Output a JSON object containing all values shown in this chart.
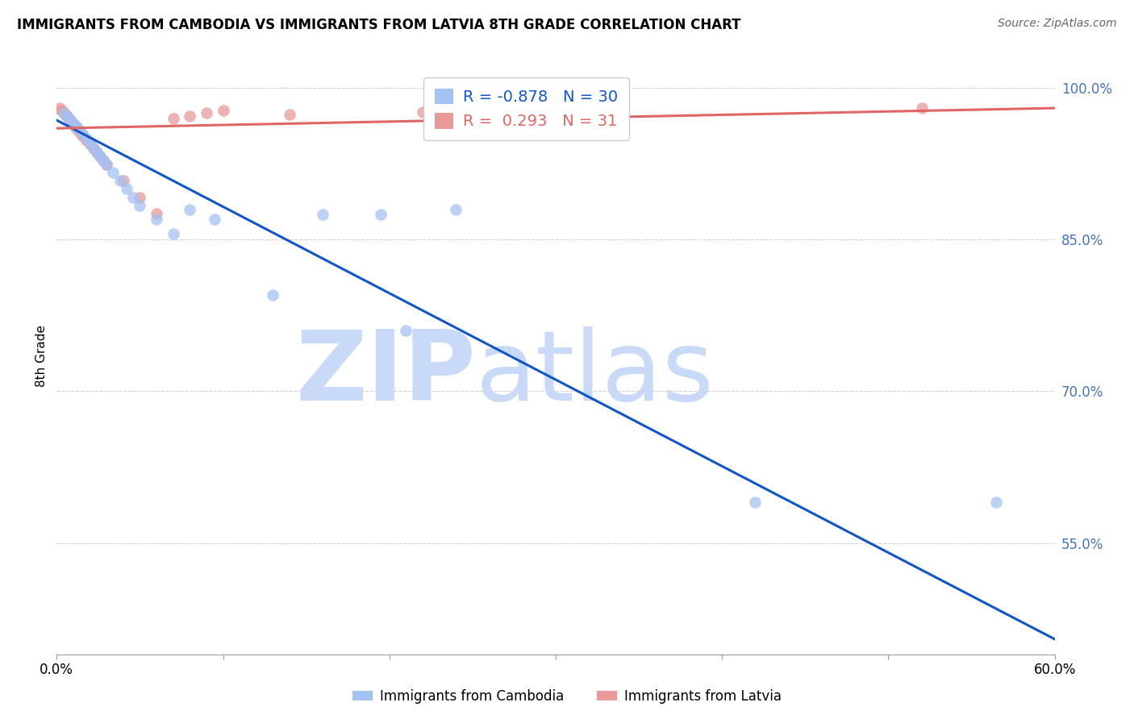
{
  "title": "IMMIGRANTS FROM CAMBODIA VS IMMIGRANTS FROM LATVIA 8TH GRADE CORRELATION CHART",
  "source": "Source: ZipAtlas.com",
  "ylabel": "8th Grade",
  "watermark_line1": "ZIP",
  "watermark_line2": "atlas",
  "xlim": [
    0.0,
    0.6
  ],
  "ylim": [
    0.44,
    1.03
  ],
  "xticks": [
    0.0,
    0.1,
    0.2,
    0.3,
    0.4,
    0.5,
    0.6
  ],
  "xtick_labels": [
    "0.0%",
    "",
    "",
    "",
    "",
    "",
    "60.0%"
  ],
  "yticks_right": [
    0.55,
    0.7,
    0.85,
    1.0
  ],
  "ytick_right_labels": [
    "55.0%",
    "70.0%",
    "85.0%",
    "100.0%"
  ],
  "blue_color": "#a4c2f4",
  "pink_color": "#ea9999",
  "blue_line_color": "#1155cc",
  "pink_line_color": "#e06666",
  "legend_blue_R": "-0.878",
  "legend_blue_N": "30",
  "legend_pink_R": "0.293",
  "legend_pink_N": "31",
  "legend_label_blue": "Immigrants from Cambodia",
  "legend_label_pink": "Immigrants from Latvia",
  "grid_color": "#b7b7b7",
  "watermark_color": "#c9daf8",
  "blue_scatter_x": [
    0.004,
    0.006,
    0.008,
    0.01,
    0.012,
    0.014,
    0.016,
    0.018,
    0.02,
    0.022,
    0.024,
    0.026,
    0.028,
    0.03,
    0.034,
    0.038,
    0.042,
    0.046,
    0.05,
    0.06,
    0.07,
    0.08,
    0.095,
    0.13,
    0.16,
    0.195,
    0.21,
    0.24,
    0.42,
    0.565
  ],
  "blue_scatter_y": [
    0.975,
    0.972,
    0.968,
    0.965,
    0.962,
    0.958,
    0.954,
    0.95,
    0.945,
    0.94,
    0.936,
    0.932,
    0.928,
    0.924,
    0.916,
    0.908,
    0.9,
    0.892,
    0.884,
    0.87,
    0.856,
    0.88,
    0.87,
    0.795,
    0.875,
    0.875,
    0.76,
    0.88,
    0.59,
    0.59
  ],
  "pink_scatter_x": [
    0.002,
    0.003,
    0.004,
    0.005,
    0.006,
    0.007,
    0.008,
    0.009,
    0.01,
    0.011,
    0.012,
    0.013,
    0.015,
    0.016,
    0.018,
    0.02,
    0.022,
    0.024,
    0.026,
    0.028,
    0.03,
    0.04,
    0.05,
    0.06,
    0.07,
    0.08,
    0.09,
    0.1,
    0.14,
    0.22,
    0.52
  ],
  "pink_scatter_y": [
    0.98,
    0.978,
    0.976,
    0.974,
    0.972,
    0.97,
    0.968,
    0.966,
    0.964,
    0.962,
    0.96,
    0.958,
    0.954,
    0.952,
    0.948,
    0.944,
    0.94,
    0.936,
    0.932,
    0.928,
    0.924,
    0.908,
    0.892,
    0.876,
    0.97,
    0.972,
    0.975,
    0.978,
    0.974,
    0.976,
    0.98
  ],
  "blue_line_x0": 0.0,
  "blue_line_x1": 0.6,
  "blue_line_y0": 0.968,
  "blue_line_y1": 0.455,
  "pink_line_x0": 0.0,
  "pink_line_x1": 0.6,
  "pink_line_y0": 0.96,
  "pink_line_y1": 0.98
}
